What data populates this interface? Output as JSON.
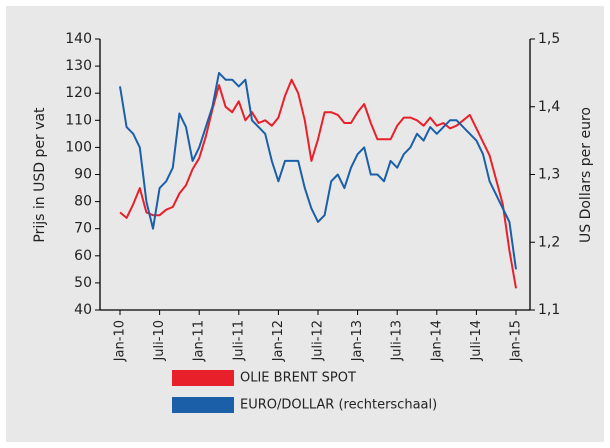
{
  "chart_data": {
    "type": "line",
    "y_label": "Prijs in USD per vat",
    "y2_label": "US Dollars per euro",
    "categories": [
      "Jan-10",
      null,
      null,
      null,
      null,
      null,
      "Juli-10",
      null,
      null,
      null,
      null,
      null,
      "Jan-11",
      null,
      null,
      null,
      null,
      null,
      "Juli-11",
      null,
      null,
      null,
      null,
      null,
      "Jan-12",
      null,
      null,
      null,
      null,
      null,
      "Juli-12",
      null,
      null,
      null,
      null,
      null,
      "Jan-13",
      null,
      null,
      null,
      null,
      null,
      "Juli-13",
      null,
      null,
      null,
      null,
      null,
      "Jan-14",
      null,
      null,
      null,
      null,
      null,
      "Juli-14",
      null,
      null,
      null,
      null,
      null,
      "Jan-15"
    ],
    "ylim": [
      40,
      140
    ],
    "yticks": [
      40,
      50,
      60,
      70,
      80,
      90,
      100,
      110,
      120,
      130,
      140
    ],
    "y2lim": [
      1.1,
      1.5
    ],
    "y2ticks": [
      {
        "value": 1.1,
        "label": "1,1"
      },
      {
        "value": 1.2,
        "label": "1,2"
      },
      {
        "value": 1.3,
        "label": "1,3"
      },
      {
        "value": 1.4,
        "label": "1,4"
      },
      {
        "value": 1.5,
        "label": "1,5"
      }
    ],
    "series": [
      {
        "name": "OLIE BRENT SPOT",
        "color": "#e8202a",
        "values": [
          76,
          74,
          79,
          85,
          76,
          75,
          75,
          77,
          78,
          83,
          86,
          92,
          96,
          104,
          114,
          123,
          115,
          113,
          117,
          110,
          113,
          109,
          110,
          108,
          111,
          119,
          125,
          120,
          110,
          95,
          103,
          113,
          113,
          112,
          109,
          109,
          113,
          116,
          109,
          103,
          103,
          103,
          108,
          111,
          111,
          110,
          108,
          111,
          108,
          109,
          107,
          108,
          110,
          112,
          107,
          102,
          97,
          88,
          79,
          62,
          48
        ]
      },
      {
        "name": "EURO/DOLLAR (rechterschaal)",
        "color": "#1a5fa8",
        "axis": "y2",
        "values": [
          1.43,
          1.37,
          1.36,
          1.34,
          1.26,
          1.22,
          1.28,
          1.29,
          1.31,
          1.39,
          1.37,
          1.32,
          1.34,
          1.37,
          1.4,
          1.45,
          1.44,
          1.44,
          1.43,
          1.44,
          1.38,
          1.37,
          1.36,
          1.32,
          1.29,
          1.32,
          1.32,
          1.32,
          1.28,
          1.25,
          1.23,
          1.24,
          1.29,
          1.3,
          1.28,
          1.31,
          1.33,
          1.34,
          1.3,
          1.3,
          1.29,
          1.32,
          1.31,
          1.33,
          1.34,
          1.36,
          1.35,
          1.37,
          1.36,
          1.37,
          1.38,
          1.38,
          1.37,
          1.36,
          1.35,
          1.33,
          1.29,
          1.27,
          1.25,
          1.23,
          1.16
        ]
      }
    ]
  }
}
